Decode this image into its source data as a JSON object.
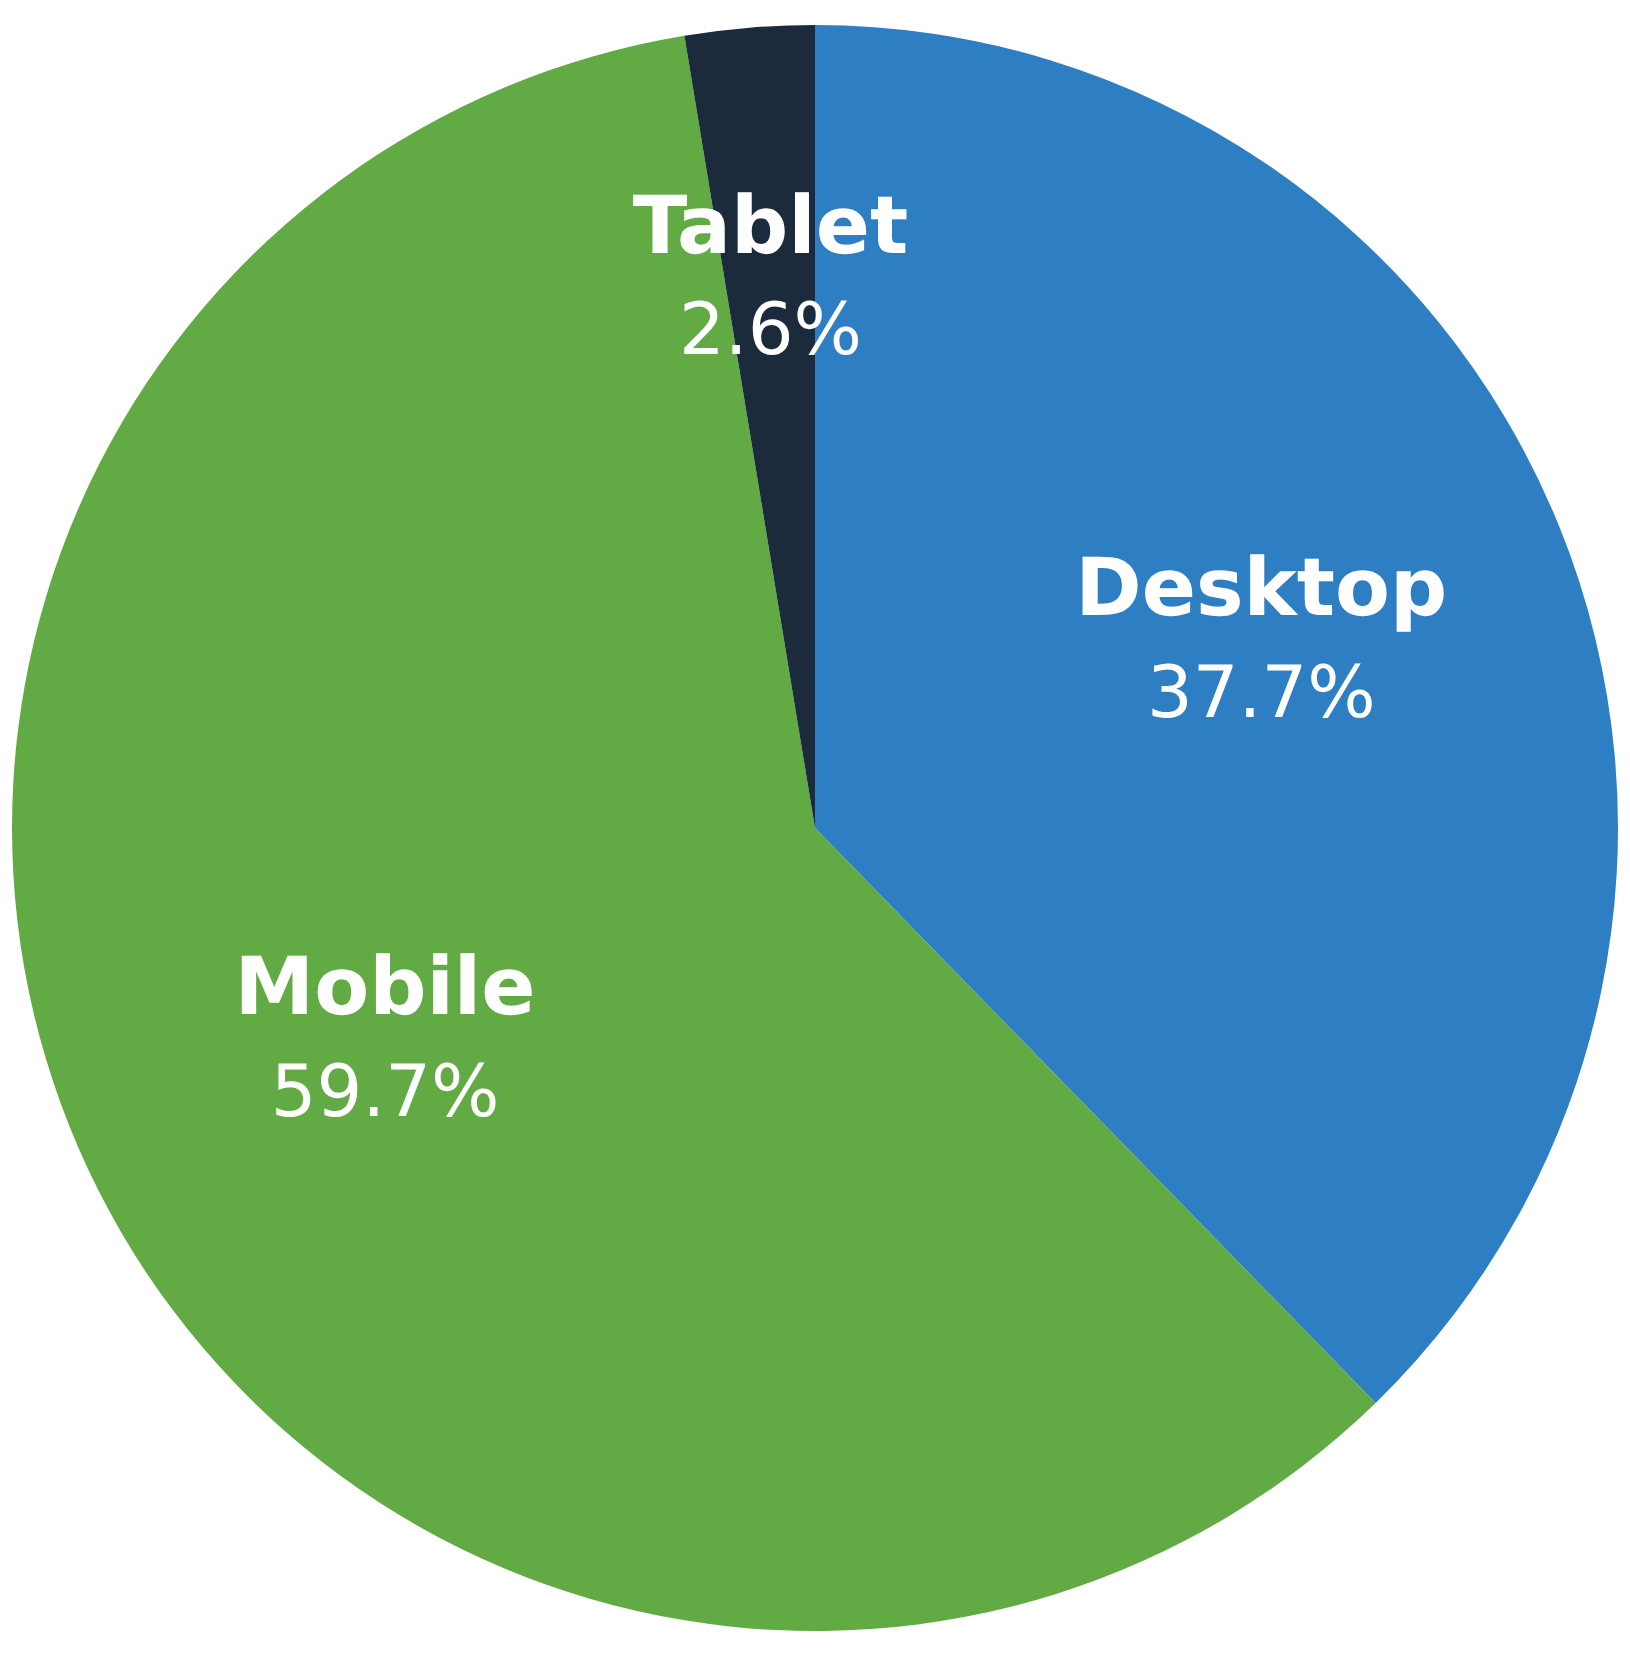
{
  "chart_data": {
    "type": "pie",
    "categories": [
      "Desktop",
      "Mobile",
      "Tablet"
    ],
    "values": [
      37.7,
      59.7,
      2.6
    ],
    "colors": [
      "#2e7ec4",
      "#62ab44",
      "#1c2b3c"
    ],
    "value_labels": [
      "37.7%",
      "59.7%",
      "2.6%"
    ],
    "legend": false
  }
}
